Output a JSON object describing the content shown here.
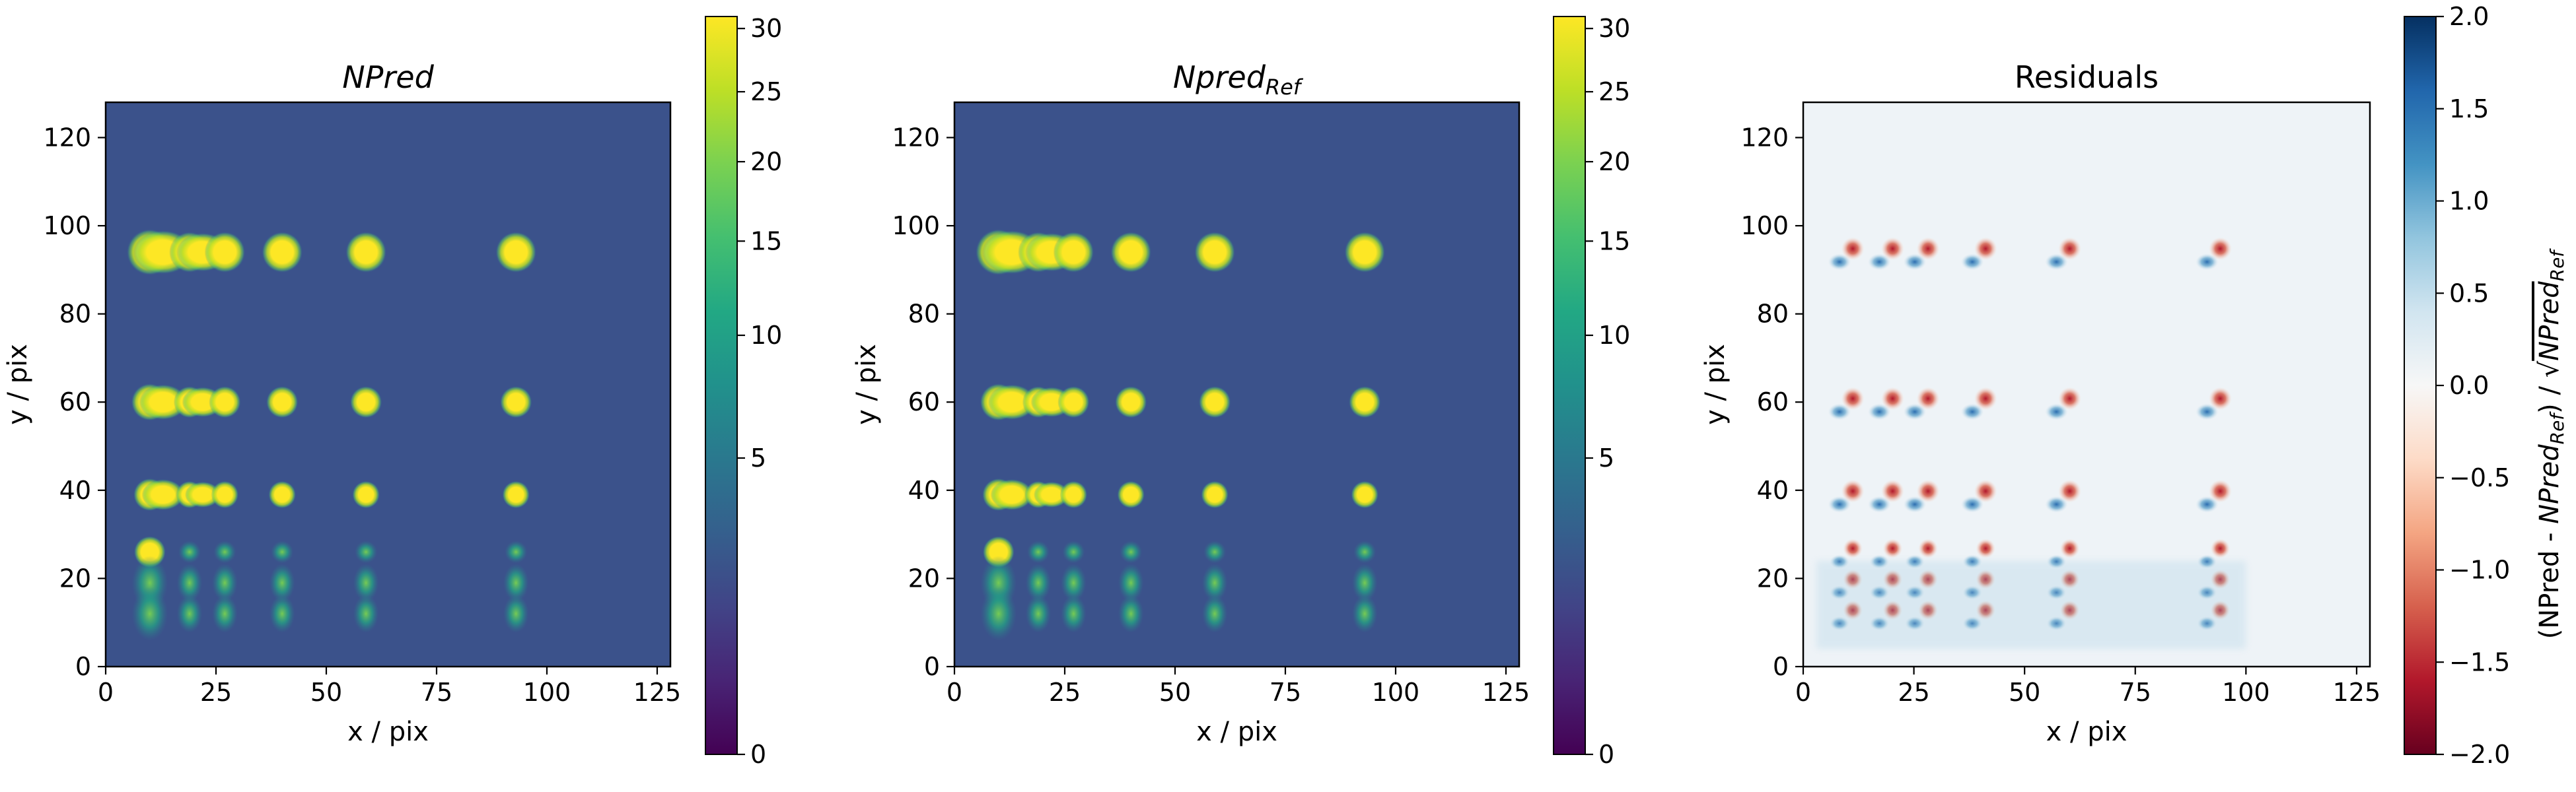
{
  "chart_data": [
    {
      "type": "heatmap",
      "title": "NPred",
      "title_italic": true,
      "xlabel": "x / pix",
      "ylabel": "y / pix",
      "xlim": [
        0,
        128
      ],
      "ylim": [
        0,
        128
      ],
      "xticks": [
        "0",
        "25",
        "50",
        "75",
        "100",
        "125"
      ],
      "yticks": [
        "0",
        "20",
        "40",
        "60",
        "80",
        "100",
        "120"
      ],
      "colormap": "viridis",
      "color_scale": "sqrt",
      "clim": [
        0,
        31
      ],
      "colorbar_ticks": [
        "0",
        "5",
        "10",
        "15",
        "20",
        "25",
        "30"
      ],
      "colorbar_label": ""
    },
    {
      "type": "heatmap",
      "title_base": "Npred",
      "title_sub": "Ref",
      "title_italic": true,
      "xlabel": "x / pix",
      "ylabel": "y / pix",
      "xlim": [
        0,
        128
      ],
      "ylim": [
        0,
        128
      ],
      "xticks": [
        "0",
        "25",
        "50",
        "75",
        "100",
        "125"
      ],
      "yticks": [
        "0",
        "20",
        "40",
        "60",
        "80",
        "100",
        "120"
      ],
      "colormap": "viridis",
      "color_scale": "sqrt",
      "clim": [
        0,
        31
      ],
      "colorbar_ticks": [
        "0",
        "5",
        "10",
        "15",
        "20",
        "25",
        "30"
      ],
      "colorbar_label": ""
    },
    {
      "type": "heatmap",
      "title": "Residuals",
      "xlabel": "x / pix",
      "ylabel": "y / pix",
      "xlim": [
        0,
        128
      ],
      "ylim": [
        0,
        128
      ],
      "xticks": [
        "0",
        "25",
        "50",
        "75",
        "100",
        "125"
      ],
      "yticks": [
        "0",
        "20",
        "40",
        "60",
        "80",
        "100",
        "120"
      ],
      "colormap": "RdBu",
      "clim": [
        -2.0,
        2.0
      ],
      "colorbar_ticks": [
        "−2.0",
        "−1.5",
        "−1.0",
        "−0.5",
        "0.0",
        "0.5",
        "1.0",
        "1.5",
        "2.0"
      ],
      "colorbar_label_parts": [
        "(NPred - ",
        "NPred",
        "Ref",
        ") / √",
        "NPred",
        "Ref"
      ]
    }
  ],
  "sources": {
    "columns_x": [
      10,
      19,
      27,
      40,
      59,
      93
    ],
    "rows_y": [
      94,
      60,
      39,
      26,
      19,
      12
    ],
    "background": 2.2
  }
}
